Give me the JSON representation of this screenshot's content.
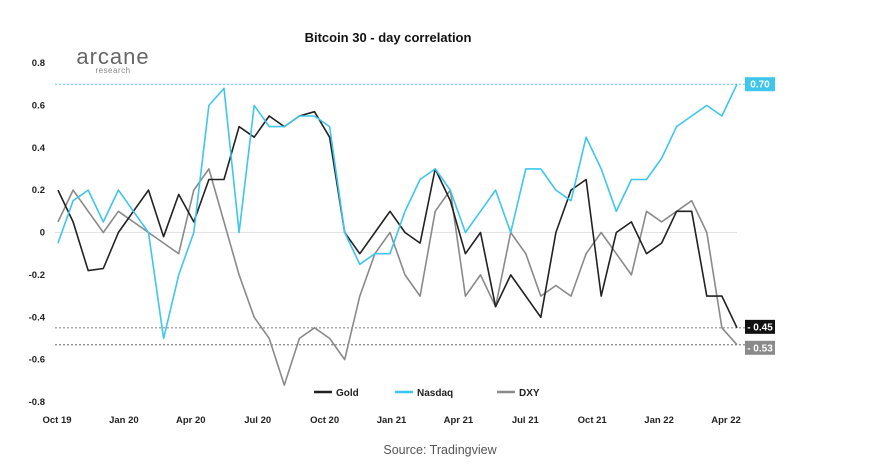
{
  "brand": {
    "name": "arcane",
    "sub": "research"
  },
  "source": "Source: Tradingview",
  "colors": {
    "gold": "#222222",
    "nasdaq": "#3ec6ec",
    "dxy": "#8a8a8a"
  },
  "chart_data": {
    "type": "line",
    "title": "Bitcoin 30 - day correlation",
    "xlabel": "",
    "ylabel": "",
    "x_tick_labels": [
      "Oct 19",
      "Jan 20",
      "Apr 20",
      "Jul 20",
      "Oct 20",
      "Jan 21",
      "Apr 21",
      "Jul 21",
      "Oct 21",
      "Jan 22",
      "Apr 22"
    ],
    "y_tick_labels": [
      "0.8",
      "0.6",
      "0.4",
      "0.2",
      "0",
      "-0.2",
      "-0.4",
      "-0.6",
      "-0.8"
    ],
    "ylim": [
      -0.8,
      0.8
    ],
    "legend_position": "bottom",
    "series": [
      {
        "name": "Gold",
        "color": "#222222",
        "last_label": "- 0.45",
        "values": [
          0.2,
          0.05,
          -0.18,
          -0.17,
          0.0,
          0.1,
          0.2,
          -0.02,
          0.18,
          0.05,
          0.25,
          0.25,
          0.5,
          0.45,
          0.55,
          0.5,
          0.55,
          0.57,
          0.45,
          0.0,
          -0.1,
          0.0,
          0.1,
          0.0,
          -0.05,
          0.3,
          0.15,
          -0.1,
          0.0,
          -0.35,
          -0.2,
          -0.3,
          -0.4,
          0.0,
          0.2,
          0.25,
          -0.3,
          0.0,
          0.05,
          -0.1,
          -0.05,
          0.1,
          0.1,
          -0.3,
          -0.3,
          -0.45
        ]
      },
      {
        "name": "Nasdaq",
        "color": "#3ec6ec",
        "last_label": "0.70",
        "values": [
          -0.05,
          0.15,
          0.2,
          0.05,
          0.2,
          0.1,
          0.0,
          -0.5,
          -0.2,
          0.0,
          0.6,
          0.68,
          0.0,
          0.6,
          0.5,
          0.5,
          0.55,
          0.55,
          0.5,
          0.0,
          -0.15,
          -0.1,
          -0.1,
          0.1,
          0.25,
          0.3,
          0.2,
          0.0,
          0.1,
          0.2,
          0.0,
          0.3,
          0.3,
          0.2,
          0.15,
          0.45,
          0.3,
          0.1,
          0.25,
          0.25,
          0.35,
          0.5,
          0.55,
          0.6,
          0.55,
          0.7
        ]
      },
      {
        "name": "DXY",
        "color": "#8a8a8a",
        "last_label": "- 0.53",
        "values": [
          0.05,
          0.2,
          0.1,
          0.0,
          0.1,
          0.05,
          0.0,
          -0.05,
          -0.1,
          0.2,
          0.3,
          0.05,
          -0.2,
          -0.4,
          -0.5,
          -0.72,
          -0.5,
          -0.45,
          -0.5,
          -0.6,
          -0.3,
          -0.1,
          0.0,
          -0.2,
          -0.3,
          0.1,
          0.2,
          -0.3,
          -0.2,
          -0.35,
          0.0,
          -0.1,
          -0.3,
          -0.25,
          -0.3,
          -0.1,
          0.0,
          -0.1,
          -0.2,
          0.1,
          0.05,
          0.1,
          0.15,
          0.0,
          -0.45,
          -0.53
        ]
      }
    ]
  }
}
